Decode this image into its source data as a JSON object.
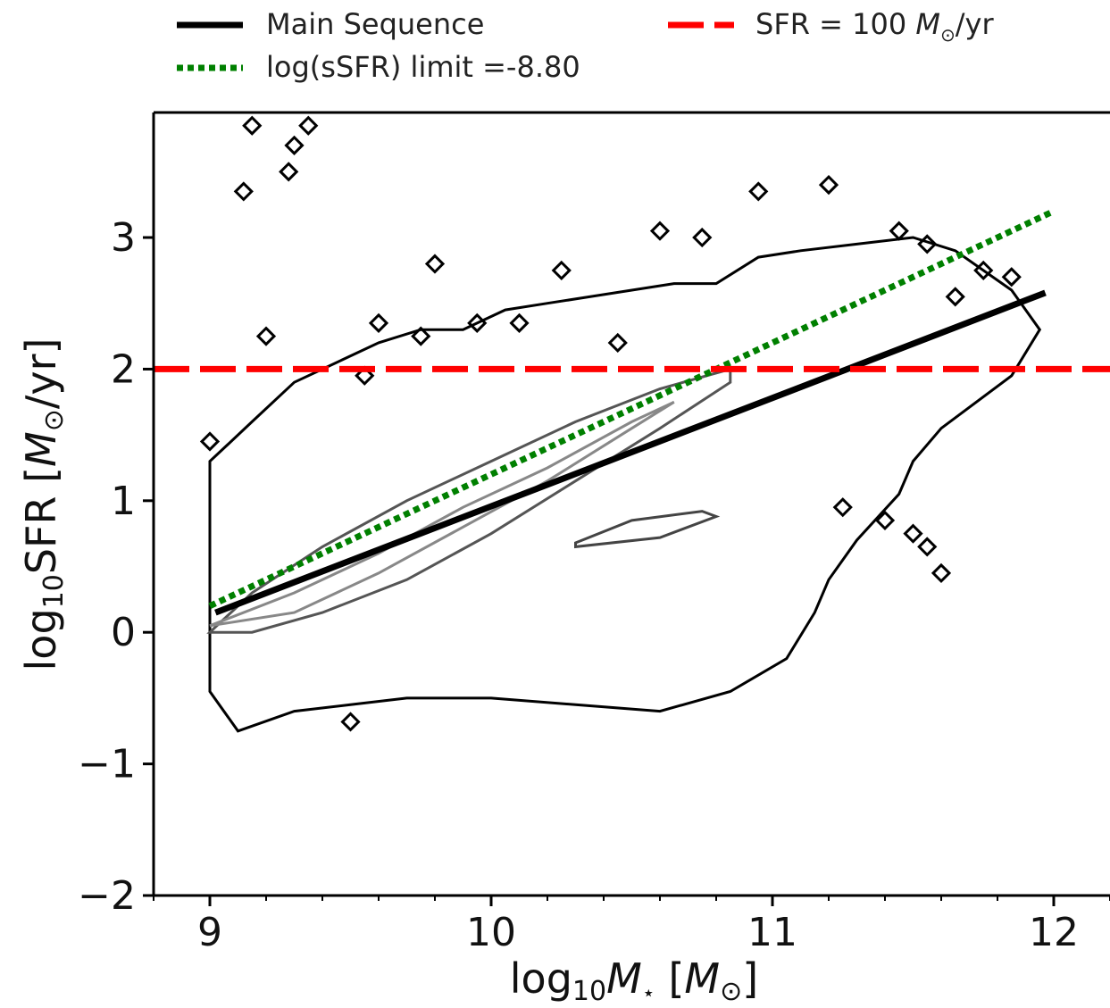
{
  "chart_data": {
    "type": "line",
    "xlabel": "log₁₀M⋆ [M⊙]",
    "ylabel": "log₁₀SFR [M⊙/yr]",
    "xlim": [
      8.8,
      12.2
    ],
    "ylim": [
      -2,
      3.95
    ],
    "x_ticks": [
      9,
      10,
      11,
      12
    ],
    "y_ticks": [
      -2,
      -1,
      0,
      1,
      2,
      3
    ],
    "x_tick_labels": [
      "9",
      "10",
      "11",
      "12"
    ],
    "y_tick_labels": [
      "−2",
      "−1",
      "0",
      "1",
      "2",
      "3"
    ],
    "grid": false,
    "legend_position": "top, above plot",
    "series": [
      {
        "name": "Main Sequence",
        "kind": "line",
        "style": "solid",
        "color": "#000000",
        "x": [
          9.02,
          11.97
        ],
        "y": [
          0.15,
          2.58
        ]
      },
      {
        "name": "log(sSFR) limit =-8.80",
        "kind": "line",
        "style": "dotted",
        "color": "#008000",
        "x": [
          9.0,
          12.0
        ],
        "y": [
          0.2,
          3.2
        ]
      },
      {
        "name": "SFR = 100 M⊙/yr",
        "kind": "hline",
        "style": "dashed",
        "color": "#ff0000",
        "y": 2.0
      }
    ],
    "contours": [
      {
        "level": "outer",
        "color": "#000000",
        "x": [
          9.0,
          9.0,
          9.05,
          9.15,
          9.3,
          9.45,
          9.6,
          9.75,
          9.9,
          10.05,
          10.2,
          10.35,
          10.5,
          10.65,
          10.8,
          10.95,
          11.1,
          11.3,
          11.5,
          11.65,
          11.85,
          11.95,
          11.85,
          11.6,
          11.5,
          11.45,
          11.3,
          11.2,
          11.15,
          11.05,
          10.85,
          10.6,
          10.3,
          10.0,
          9.7,
          9.5,
          9.3,
          9.1,
          9.0
        ],
        "y": [
          -0.45,
          1.3,
          1.4,
          1.6,
          1.9,
          2.05,
          2.2,
          2.3,
          2.3,
          2.45,
          2.5,
          2.55,
          2.6,
          2.65,
          2.65,
          2.85,
          2.9,
          2.95,
          3.0,
          2.9,
          2.6,
          2.3,
          1.95,
          1.55,
          1.3,
          1.05,
          0.7,
          0.4,
          0.15,
          -0.2,
          -0.45,
          -0.6,
          -0.55,
          -0.5,
          -0.5,
          -0.55,
          -0.6,
          -0.75,
          -0.45
        ]
      },
      {
        "level": "mid",
        "color": "#555555",
        "x": [
          9.0,
          9.15,
          9.4,
          9.7,
          10.0,
          10.3,
          10.6,
          10.85,
          10.85,
          10.6,
          10.3,
          10.0,
          9.7,
          9.4,
          9.15,
          9.0
        ],
        "y": [
          0.0,
          0.3,
          0.65,
          1.0,
          1.3,
          1.6,
          1.85,
          2.0,
          1.9,
          1.55,
          1.15,
          0.75,
          0.4,
          0.15,
          0.0,
          0.0
        ]
      },
      {
        "level": "inner",
        "color": "#888888",
        "x": [
          9.0,
          9.3,
          9.6,
          9.9,
          10.2,
          10.5,
          10.65,
          10.5,
          10.2,
          9.9,
          9.6,
          9.3,
          9.0
        ],
        "y": [
          0.05,
          0.3,
          0.6,
          0.95,
          1.25,
          1.6,
          1.75,
          1.55,
          1.15,
          0.8,
          0.45,
          0.15,
          0.05
        ]
      },
      {
        "level": "blob",
        "color": "#444444",
        "x": [
          10.3,
          10.5,
          10.75,
          10.8,
          10.6,
          10.3
        ],
        "y": [
          0.68,
          0.85,
          0.92,
          0.88,
          0.72,
          0.65
        ]
      }
    ],
    "outlier_markers": {
      "color": "#000000",
      "x": [
        9.15,
        9.35,
        9.3,
        9.12,
        9.28,
        9.2,
        9.8,
        9.0,
        9.55,
        9.75,
        9.95,
        10.1,
        10.25,
        10.6,
        10.75,
        10.95,
        11.2,
        11.45,
        11.55,
        11.65,
        11.75,
        11.85,
        9.6,
        10.45,
        11.25,
        11.4,
        11.5,
        11.55,
        11.6,
        9.5
      ],
      "y": [
        3.85,
        3.85,
        3.7,
        3.35,
        3.5,
        2.25,
        2.8,
        1.45,
        1.95,
        2.25,
        2.35,
        2.35,
        2.75,
        3.05,
        3.0,
        3.35,
        3.4,
        3.05,
        2.95,
        2.55,
        2.75,
        2.7,
        2.35,
        2.2,
        0.95,
        0.85,
        0.75,
        0.65,
        0.45,
        -0.68
      ]
    }
  },
  "legend": {
    "main_sequence": "Main Sequence",
    "ssfr_limit": "log(sSFR) limit =-8.80",
    "sfr_prefix": "SFR = 100 ",
    "sfr_unit_symbol": "M",
    "sfr_unit_sub": "⊙",
    "sfr_suffix": "/yr"
  },
  "axes": {
    "x_label_prefix": "log",
    "x_label_sub": "10",
    "x_label_var": "M",
    "x_label_var_sub": "⋆",
    "x_label_unit_open": " [",
    "x_label_unit": "M",
    "x_label_unit_sub": "⊙",
    "x_label_unit_close": "]",
    "y_label_prefix": "log",
    "y_label_sub": "10",
    "y_label_main": "SFR [",
    "y_label_unit": "M",
    "y_label_unit_sub": "⊙",
    "y_label_suffix": "/yr]"
  }
}
